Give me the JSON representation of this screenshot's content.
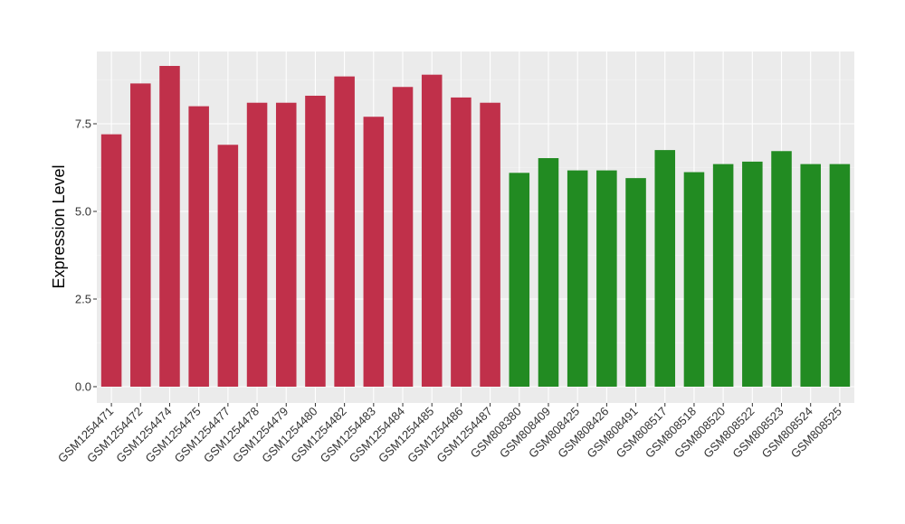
{
  "chart_data": {
    "type": "bar",
    "title": "",
    "xlabel": "",
    "ylabel": "Expression Level",
    "ylim": [
      0,
      9.5
    ],
    "y_ticks": [
      0.0,
      2.5,
      5.0,
      7.5
    ],
    "y_tick_labels": [
      "0.0",
      "2.5",
      "5.0",
      "7.5"
    ],
    "grid": true,
    "legend": "none",
    "categories": [
      "GSM1254471",
      "GSM1254472",
      "GSM1254474",
      "GSM1254475",
      "GSM1254477",
      "GSM1254478",
      "GSM1254479",
      "GSM1254480",
      "GSM1254482",
      "GSM1254483",
      "GSM1254484",
      "GSM1254485",
      "GSM1254486",
      "GSM1254487",
      "GSM808380",
      "GSM808409",
      "GSM808425",
      "GSM808426",
      "GSM808491",
      "GSM808517",
      "GSM808518",
      "GSM808520",
      "GSM808522",
      "GSM808523",
      "GSM808524",
      "GSM808525"
    ],
    "values": [
      7.2,
      8.65,
      9.15,
      8.0,
      6.9,
      8.1,
      8.1,
      8.3,
      8.85,
      7.7,
      8.55,
      8.9,
      8.25,
      8.1,
      6.1,
      6.52,
      6.17,
      6.17,
      5.95,
      6.75,
      6.12,
      6.35,
      6.42,
      6.72,
      6.35,
      6.35
    ],
    "bar_colors": [
      "#c0304a",
      "#c0304a",
      "#c0304a",
      "#c0304a",
      "#c0304a",
      "#c0304a",
      "#c0304a",
      "#c0304a",
      "#c0304a",
      "#c0304a",
      "#c0304a",
      "#c0304a",
      "#c0304a",
      "#c0304a",
      "#228b22",
      "#228b22",
      "#228b22",
      "#228b22",
      "#228b22",
      "#228b22",
      "#228b22",
      "#228b22",
      "#228b22",
      "#228b22",
      "#228b22",
      "#228b22"
    ],
    "colors": {
      "panel_background": "#ebebeb",
      "grid_major": "#ffffff",
      "grid_minor": "#f5f5f5",
      "tick_mark": "#333333"
    }
  }
}
